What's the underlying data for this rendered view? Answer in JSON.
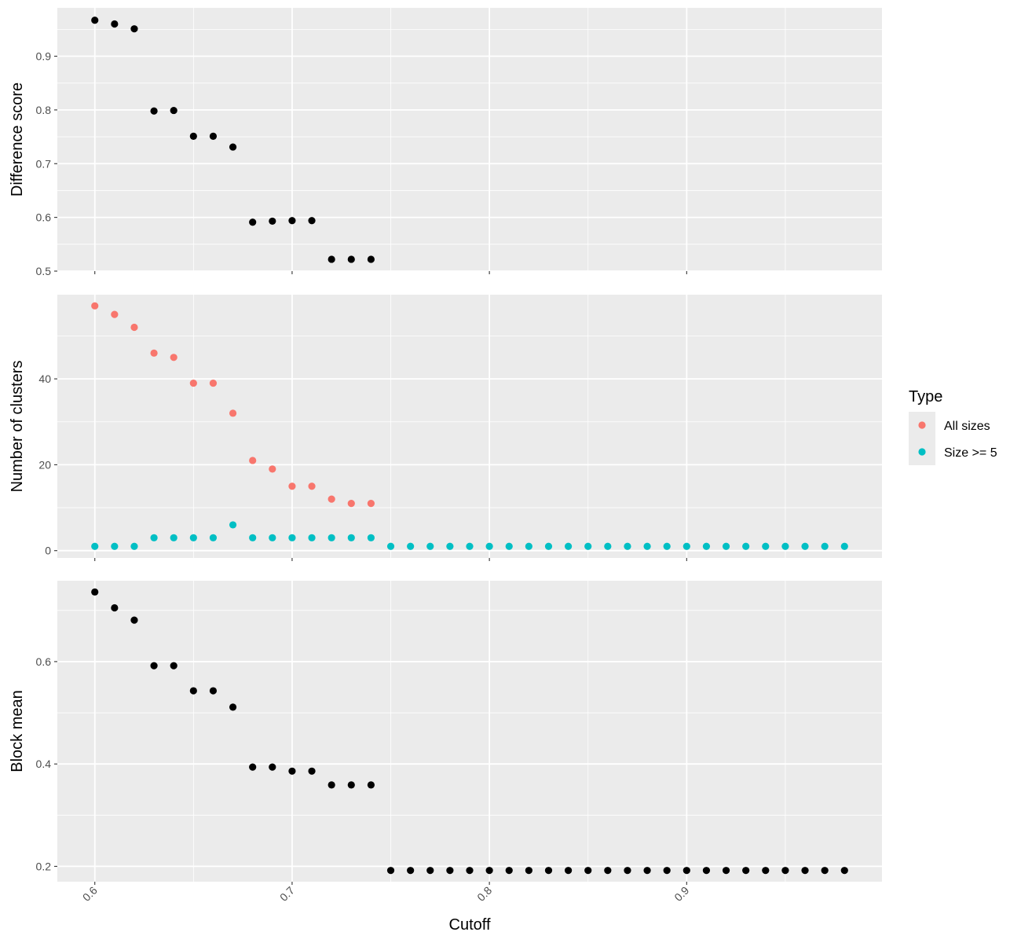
{
  "chart_data": {
    "type": "scatter",
    "xlabel": "Cutoff",
    "xlim": [
      0.581,
      0.999
    ],
    "x_ticks": [
      0.6,
      0.7,
      0.8,
      0.9
    ],
    "x_tick_labels": [
      "0.6",
      "0.7",
      "0.8",
      "0.9"
    ],
    "grid": true,
    "legend_position": "right",
    "panels": [
      {
        "ylabel": "Difference score",
        "ylim": [
          0.5,
          0.99
        ],
        "y_ticks": [
          0.5,
          0.6,
          0.7,
          0.8,
          0.9
        ],
        "y_tick_labels": [
          "0.5",
          "0.6",
          "0.7",
          "0.8",
          "0.9"
        ],
        "series": [
          {
            "color": "#000000",
            "x": [
              0.6,
              0.61,
              0.62,
              0.63,
              0.64,
              0.65,
              0.66,
              0.67,
              0.68,
              0.69,
              0.7,
              0.71,
              0.72,
              0.73,
              0.74
            ],
            "y": [
              0.967,
              0.96,
              0.951,
              0.798,
              0.799,
              0.751,
              0.751,
              0.731,
              0.591,
              0.593,
              0.594,
              0.594,
              0.522,
              0.522,
              0.522
            ]
          }
        ]
      },
      {
        "ylabel": "Number of clusters",
        "ylim": [
          -1.7,
          59.6
        ],
        "y_ticks": [
          0,
          20,
          40
        ],
        "y_tick_labels": [
          "0",
          "20",
          "40"
        ],
        "series": [
          {
            "name": "All sizes",
            "color": "#F8766D",
            "x": [
              0.6,
              0.61,
              0.62,
              0.63,
              0.64,
              0.65,
              0.66,
              0.67,
              0.68,
              0.69,
              0.7,
              0.71,
              0.72,
              0.73,
              0.74
            ],
            "y": [
              57,
              55,
              52,
              46,
              45,
              39,
              39,
              32,
              21,
              19,
              15,
              15,
              12,
              11,
              11
            ]
          },
          {
            "name": "Size >= 5",
            "color": "#00BFC4",
            "x": [
              0.6,
              0.61,
              0.62,
              0.63,
              0.64,
              0.65,
              0.66,
              0.67,
              0.68,
              0.69,
              0.7,
              0.71,
              0.72,
              0.73,
              0.74,
              0.75,
              0.76,
              0.77,
              0.78,
              0.79,
              0.8,
              0.81,
              0.82,
              0.83,
              0.84,
              0.85,
              0.86,
              0.87,
              0.88,
              0.89,
              0.9,
              0.91,
              0.92,
              0.93,
              0.94,
              0.95,
              0.96,
              0.97,
              0.98
            ],
            "y": [
              1,
              1,
              1,
              3,
              3,
              3,
              3,
              6,
              3,
              3,
              3,
              3,
              3,
              3,
              3,
              1,
              1,
              1,
              1,
              1,
              1,
              1,
              1,
              1,
              1,
              1,
              1,
              1,
              1,
              1,
              1,
              1,
              1,
              1,
              1,
              1,
              1,
              1,
              1
            ]
          }
        ]
      },
      {
        "ylabel": "Block mean",
        "ylim": [
          0.17,
          0.758
        ],
        "y_ticks": [
          0.2,
          0.4,
          0.6
        ],
        "y_tick_labels": [
          "0.2",
          "0.4",
          "0.6"
        ],
        "series": [
          {
            "color": "#000000",
            "x": [
              0.6,
              0.61,
              0.62,
              0.63,
              0.64,
              0.65,
              0.66,
              0.67,
              0.68,
              0.69,
              0.7,
              0.71,
              0.72,
              0.73,
              0.74,
              0.75,
              0.76,
              0.77,
              0.78,
              0.79,
              0.8,
              0.81,
              0.82,
              0.83,
              0.84,
              0.85,
              0.86,
              0.87,
              0.88,
              0.89,
              0.9,
              0.91,
              0.92,
              0.93,
              0.94,
              0.95,
              0.96,
              0.97,
              0.98
            ],
            "y": [
              0.736,
              0.705,
              0.681,
              0.592,
              0.592,
              0.543,
              0.543,
              0.511,
              0.394,
              0.394,
              0.386,
              0.386,
              0.359,
              0.359,
              0.359,
              0.192,
              0.192,
              0.192,
              0.192,
              0.192,
              0.192,
              0.192,
              0.192,
              0.192,
              0.192,
              0.192,
              0.192,
              0.192,
              0.192,
              0.192,
              0.192,
              0.192,
              0.192,
              0.192,
              0.192,
              0.192,
              0.192,
              0.192,
              0.192
            ]
          }
        ]
      }
    ],
    "legend": {
      "title": "Type",
      "entries": [
        {
          "label": "All sizes",
          "color": "#F8766D"
        },
        {
          "label": "Size >= 5",
          "color": "#00BFC4"
        }
      ]
    }
  }
}
